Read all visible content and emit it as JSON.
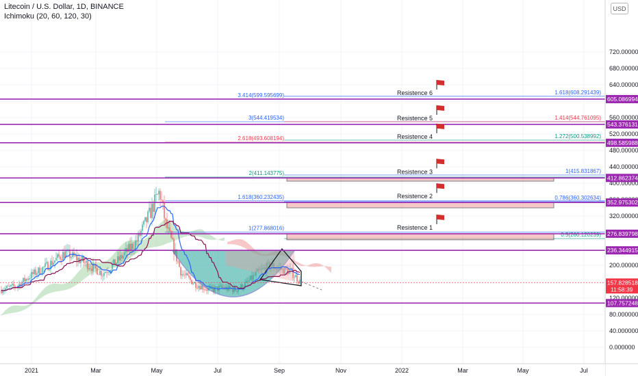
{
  "header": {
    "symbol_line": "Litecoin / U.S. Dollar, 1D, BINANCE",
    "indicator_line": "Ichimoku (20, 60, 120, 30)",
    "currency_button": "USD"
  },
  "colors": {
    "resistance_line": "#9c27b0",
    "price_label_bg": "#9c27b0",
    "current_label_bg": "#f23645",
    "fib_blue": "#2962ff",
    "fib_red": "#f23645",
    "fib_green": "#089981",
    "cloud_green": "#a5d6a7",
    "cloud_red": "#ef9a9a",
    "cup_fill": "#26a69a",
    "cup_stroke": "#3f51b5",
    "flag": "#d32f2f"
  },
  "chart_data": {
    "type": "candlestick",
    "title": "Litecoin / U.S. Dollar, 1D, BINANCE",
    "ylim": [
      -40,
      760
    ],
    "y_ticks": [
      "720.000000",
      "680.000000",
      "640.000000",
      "600.000000",
      "560.000000",
      "520.000000",
      "480.000000",
      "440.000000",
      "400.000000",
      "360.000000",
      "320.000000",
      "280.000000",
      "240.000000",
      "200.000000",
      "160.000000",
      "120.000000",
      "80.000000",
      "40.000000",
      "0.000000"
    ],
    "y_tick_values": [
      720,
      680,
      640,
      600,
      560,
      520,
      480,
      440,
      400,
      360,
      320,
      280,
      240,
      200,
      160,
      120,
      80,
      40,
      0
    ],
    "x_ticks": [
      "2021",
      "Mar",
      "May",
      "Jul",
      "Sep",
      "Nov",
      "2022",
      "Mar",
      "May",
      "Jul"
    ],
    "current_price": {
      "value": 157.828518,
      "label": "157.828518",
      "countdown": "11:58:39"
    },
    "resistances": [
      {
        "name": "Resistence 6",
        "value": 605.086994,
        "label": "605.086994"
      },
      {
        "name": "Resistence 5",
        "value": 543.376131,
        "label": "543.376131"
      },
      {
        "name": "Resistence 4",
        "value": 498.585988,
        "label": "498.585988"
      },
      {
        "name": "Resistence 3",
        "value": 412.862374,
        "label": "412.862374"
      },
      {
        "name": "Resistence 2",
        "value": 352.975302,
        "label": "352.975302"
      },
      {
        "name": "Resistence 1",
        "value": 276.839798,
        "label": "276.839798"
      },
      {
        "name": "",
        "value": 236.344915,
        "label": "236.344915"
      },
      {
        "name": "",
        "value": 107.757248,
        "label": "107.757248"
      }
    ],
    "fib_left": [
      {
        "label": "3.414(599.595699)",
        "value": 605,
        "color": "fib_blue"
      },
      {
        "label": "3(544.419534)",
        "value": 550,
        "color": "fib_blue"
      },
      {
        "label": "2.618(493.608194)",
        "value": 500,
        "color": "fib_red"
      },
      {
        "label": "2(411.143775)",
        "value": 415,
        "color": "fib_green"
      },
      {
        "label": "1.618(360.232435)",
        "value": 357,
        "color": "fib_blue"
      },
      {
        "label": "1(277.868016)",
        "value": 281,
        "color": "fib_blue"
      }
    ],
    "fib_right": [
      {
        "label": "1.618(608.291439)",
        "value": 612,
        "color": "fib_blue"
      },
      {
        "label": "1.414(544.761095)",
        "value": 550,
        "color": "fib_red"
      },
      {
        "label": "1.272(500.538992)",
        "value": 505,
        "color": "fib_green"
      },
      {
        "label": "1(415.831867)",
        "value": 420,
        "color": "fib_blue"
      },
      {
        "label": "0.786(360.302634)",
        "value": 355,
        "color": "fib_blue"
      },
      {
        "label": "0.5(260.120239)",
        "value": 265,
        "color": "fib_green"
      }
    ]
  }
}
